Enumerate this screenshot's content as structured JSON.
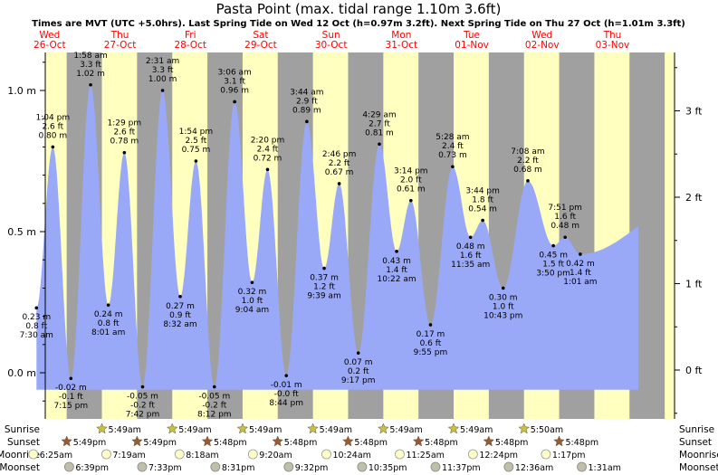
{
  "title": "Pasta Point (max. tidal range 1.10m 3.6ft)",
  "subtitle": "Times are MVT (UTC +5.0hrs). Last Spring Tide on Wed 12 Oct (h=0.97m 3.2ft). Next Spring Tide on Thu 27 Oct (h=1.01m 3.3ft)",
  "colors": {
    "day": "#ffffc0",
    "night": "#a0a0a0",
    "tide": "#9aa8f8",
    "daylabel": "#ff0000"
  },
  "days": [
    {
      "name": "Wed",
      "date": "26-Oct"
    },
    {
      "name": "Thu",
      "date": "27-Oct"
    },
    {
      "name": "Fri",
      "date": "28-Oct"
    },
    {
      "name": "Sat",
      "date": "29-Oct"
    },
    {
      "name": "Sun",
      "date": "30-Oct"
    },
    {
      "name": "Mon",
      "date": "31-Oct"
    },
    {
      "name": "Tue",
      "date": "01-Nov"
    },
    {
      "name": "Wed",
      "date": "02-Nov"
    },
    {
      "name": "Thu",
      "date": "03-Nov"
    }
  ],
  "left_axis": {
    "ticks": [
      {
        "v": 0.0,
        "label": "0.0 m"
      },
      {
        "v": 0.5,
        "label": "0.5 m"
      },
      {
        "v": 1.0,
        "label": "1.0 m"
      }
    ]
  },
  "right_axis": {
    "ticks": [
      {
        "v": 0,
        "label": "0 ft"
      },
      {
        "v": 1,
        "label": "1 ft"
      },
      {
        "v": 2,
        "label": "2 ft"
      },
      {
        "v": 3,
        "label": "3 ft"
      }
    ]
  },
  "chart_data": {
    "type": "area",
    "title": "Pasta Point (max. tidal range 1.10m 3.6ft)",
    "ylim_m": [
      -0.1,
      1.2
    ],
    "tides": [
      {
        "day": 0,
        "hour": 7.5,
        "m": 0.23,
        "ft": "0.8 ft",
        "time": "7:30 am",
        "kind": "low"
      },
      {
        "day": 0,
        "hour": 13.07,
        "m": 0.8,
        "ft": "2.6 ft",
        "time": "1:04 pm",
        "kind": "high"
      },
      {
        "day": 0,
        "hour": 19.25,
        "m": -0.02,
        "ft": "-0.1 ft",
        "time": "7:15 pm",
        "kind": "low"
      },
      {
        "day": 1,
        "hour": 1.97,
        "m": 1.02,
        "ft": "3.3 ft",
        "time": "1:58 am",
        "kind": "high"
      },
      {
        "day": 1,
        "hour": 8.02,
        "m": 0.24,
        "ft": "0.8 ft",
        "time": "8:01 am",
        "kind": "low"
      },
      {
        "day": 1,
        "hour": 13.48,
        "m": 0.78,
        "ft": "2.6 ft",
        "time": "1:29 pm",
        "kind": "high"
      },
      {
        "day": 1,
        "hour": 19.7,
        "m": -0.05,
        "ft": "-0.2 ft",
        "time": "7:42 pm",
        "kind": "low"
      },
      {
        "day": 2,
        "hour": 2.52,
        "m": 1.0,
        "ft": "3.3 ft",
        "time": "2:31 am",
        "kind": "high"
      },
      {
        "day": 2,
        "hour": 8.53,
        "m": 0.27,
        "ft": "0.9 ft",
        "time": "8:32 am",
        "kind": "low"
      },
      {
        "day": 2,
        "hour": 13.9,
        "m": 0.75,
        "ft": "2.5 ft",
        "time": "1:54 pm",
        "kind": "high"
      },
      {
        "day": 2,
        "hour": 20.2,
        "m": -0.05,
        "ft": "-0.2 ft",
        "time": "8:12 pm",
        "kind": "low"
      },
      {
        "day": 3,
        "hour": 3.1,
        "m": 0.96,
        "ft": "3.1 ft",
        "time": "3:06 am",
        "kind": "high"
      },
      {
        "day": 3,
        "hour": 9.07,
        "m": 0.32,
        "ft": "1.0 ft",
        "time": "9:04 am",
        "kind": "low"
      },
      {
        "day": 3,
        "hour": 14.33,
        "m": 0.72,
        "ft": "2.4 ft",
        "time": "2:20 pm",
        "kind": "high"
      },
      {
        "day": 3,
        "hour": 20.73,
        "m": -0.01,
        "ft": "-0.0 ft",
        "time": "8:44 pm",
        "kind": "low"
      },
      {
        "day": 4,
        "hour": 3.73,
        "m": 0.89,
        "ft": "2.9 ft",
        "time": "3:44 am",
        "kind": "high"
      },
      {
        "day": 4,
        "hour": 9.65,
        "m": 0.37,
        "ft": "1.2 ft",
        "time": "9:39 am",
        "kind": "low"
      },
      {
        "day": 4,
        "hour": 14.77,
        "m": 0.67,
        "ft": "2.2 ft",
        "time": "2:46 pm",
        "kind": "high"
      },
      {
        "day": 4,
        "hour": 21.28,
        "m": 0.07,
        "ft": "0.2 ft",
        "time": "9:17 pm",
        "kind": "low"
      },
      {
        "day": 5,
        "hour": 4.48,
        "m": 0.81,
        "ft": "2.7 ft",
        "time": "4:29 am",
        "kind": "high"
      },
      {
        "day": 5,
        "hour": 10.37,
        "m": 0.43,
        "ft": "1.4 ft",
        "time": "10:22 am",
        "kind": "low"
      },
      {
        "day": 5,
        "hour": 15.23,
        "m": 0.61,
        "ft": "2.0 ft",
        "time": "3:14 pm",
        "kind": "high"
      },
      {
        "day": 5,
        "hour": 21.92,
        "m": 0.17,
        "ft": "0.6 ft",
        "time": "9:55 pm",
        "kind": "low"
      },
      {
        "day": 6,
        "hour": 5.47,
        "m": 0.73,
        "ft": "2.4 ft",
        "time": "5:28 am",
        "kind": "high"
      },
      {
        "day": 6,
        "hour": 11.58,
        "m": 0.48,
        "ft": "1.6 ft",
        "time": "11:35 am",
        "kind": "low"
      },
      {
        "day": 6,
        "hour": 15.73,
        "m": 0.54,
        "ft": "1.8 ft",
        "time": "3:44 pm",
        "kind": "high"
      },
      {
        "day": 6,
        "hour": 22.72,
        "m": 0.3,
        "ft": "1.0 ft",
        "time": "10:43 pm",
        "kind": "low"
      },
      {
        "day": 7,
        "hour": 7.13,
        "m": 0.68,
        "ft": "2.2 ft",
        "time": "7:08 am",
        "kind": "high"
      },
      {
        "day": 7,
        "hour": 15.83,
        "m": 0.45,
        "ft": "1.5 ft",
        "time": "3:50 pm",
        "kind": "low"
      },
      {
        "day": 7,
        "hour": 19.85,
        "m": 0.48,
        "ft": "1.6 ft",
        "time": "7:51 pm",
        "kind": "high"
      },
      {
        "day": 8,
        "hour": 1.02,
        "m": 0.42,
        "ft": "1.4 ft",
        "time": "1:01 am",
        "kind": "low"
      }
    ]
  },
  "bottom": {
    "labels": [
      "Sunrise",
      "Sunset",
      "Moonrise",
      "Moonset"
    ],
    "sunrise": [
      {
        "day": 1,
        "hour": 5.82,
        "text": "5:49am"
      },
      {
        "day": 2,
        "hour": 5.82,
        "text": "5:49am"
      },
      {
        "day": 3,
        "hour": 5.82,
        "text": "5:49am"
      },
      {
        "day": 4,
        "hour": 5.82,
        "text": "5:49am"
      },
      {
        "day": 5,
        "hour": 5.82,
        "text": "5:49am"
      },
      {
        "day": 6,
        "hour": 5.82,
        "text": "5:49am"
      },
      {
        "day": 7,
        "hour": 5.83,
        "text": "5:50am"
      }
    ],
    "sunset": [
      {
        "day": 0,
        "hour": 17.82,
        "text": "5:49pm"
      },
      {
        "day": 1,
        "hour": 17.82,
        "text": "5:49pm"
      },
      {
        "day": 2,
        "hour": 17.8,
        "text": "5:48pm"
      },
      {
        "day": 3,
        "hour": 17.8,
        "text": "5:48pm"
      },
      {
        "day": 4,
        "hour": 17.8,
        "text": "5:48pm"
      },
      {
        "day": 5,
        "hour": 17.8,
        "text": "5:48pm"
      },
      {
        "day": 6,
        "hour": 17.8,
        "text": "5:48pm"
      },
      {
        "day": 7,
        "hour": 17.8,
        "text": "5:48pm"
      }
    ],
    "moonrise": [
      {
        "day": 0,
        "hour": 6.42,
        "text": "6:25am"
      },
      {
        "day": 1,
        "hour": 7.32,
        "text": "7:19am"
      },
      {
        "day": 2,
        "hour": 8.3,
        "text": "8:18am"
      },
      {
        "day": 3,
        "hour": 9.33,
        "text": "9:20am"
      },
      {
        "day": 4,
        "hour": 10.4,
        "text": "10:24am"
      },
      {
        "day": 5,
        "hour": 11.42,
        "text": "11:25am"
      },
      {
        "day": 6,
        "hour": 12.4,
        "text": "12:24pm"
      },
      {
        "day": 7,
        "hour": 13.28,
        "text": "1:17pm"
      }
    ],
    "moonset": [
      {
        "day": 0,
        "hour": 18.65,
        "text": "6:39pm"
      },
      {
        "day": 1,
        "hour": 19.55,
        "text": "7:33pm"
      },
      {
        "day": 2,
        "hour": 20.52,
        "text": "8:31pm"
      },
      {
        "day": 3,
        "hour": 21.53,
        "text": "9:32pm"
      },
      {
        "day": 4,
        "hour": 22.58,
        "text": "10:35pm"
      },
      {
        "day": 5,
        "hour": 23.62,
        "text": "11:37pm"
      },
      {
        "day": 7,
        "hour": 0.6,
        "text": "12:36am"
      },
      {
        "day": 8,
        "hour": 1.52,
        "text": "1:31am"
      }
    ]
  }
}
